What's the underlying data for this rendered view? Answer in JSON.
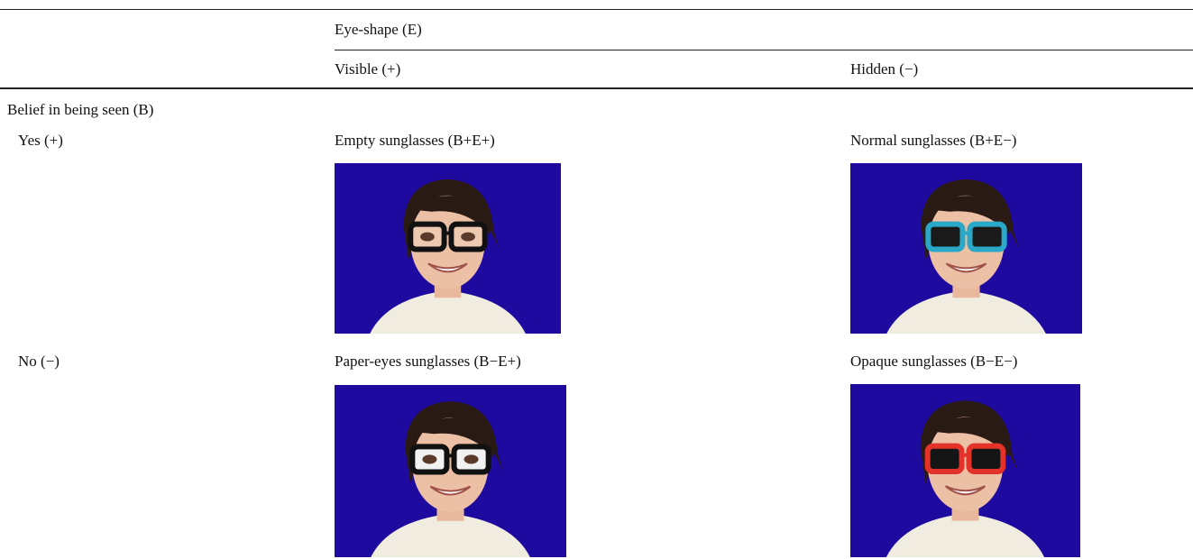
{
  "header": {
    "column_group": "Eye-shape (E)",
    "columns": [
      "Visible (+)",
      "Hidden (−)"
    ]
  },
  "row_group": "Belief in being seen (B)",
  "rows": [
    {
      "label": "Yes (+)",
      "cells": [
        "Empty sunglasses (B+E+)",
        "Normal sunglasses (B+E−)"
      ]
    },
    {
      "label": "No (−)",
      "cells": [
        "Paper-eyes sunglasses (B−E+)",
        "Opaque sunglasses (B−E−)"
      ]
    }
  ]
}
